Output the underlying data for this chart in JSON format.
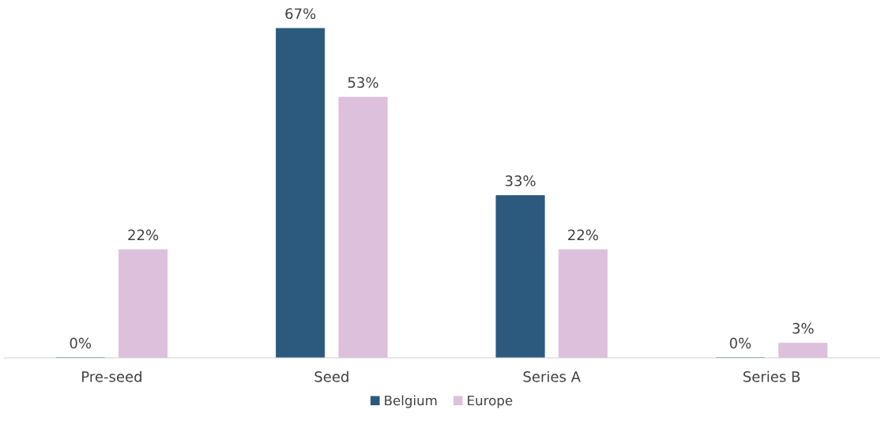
{
  "chart_data": {
    "type": "bar",
    "categories": [
      "Pre-seed",
      "Seed",
      "Series A",
      "Series B"
    ],
    "series": [
      {
        "name": "Belgium",
        "color": "#2c5a7e",
        "values": [
          0,
          67,
          33,
          0
        ],
        "value_labels": [
          "0%",
          "67%",
          "33%",
          "0%"
        ]
      },
      {
        "name": "Europe",
        "color": "#dcc0dc",
        "values": [
          22,
          53,
          22,
          3
        ],
        "value_labels": [
          "22%",
          "53%",
          "22%",
          "3%"
        ]
      }
    ],
    "legend": "bottom"
  }
}
